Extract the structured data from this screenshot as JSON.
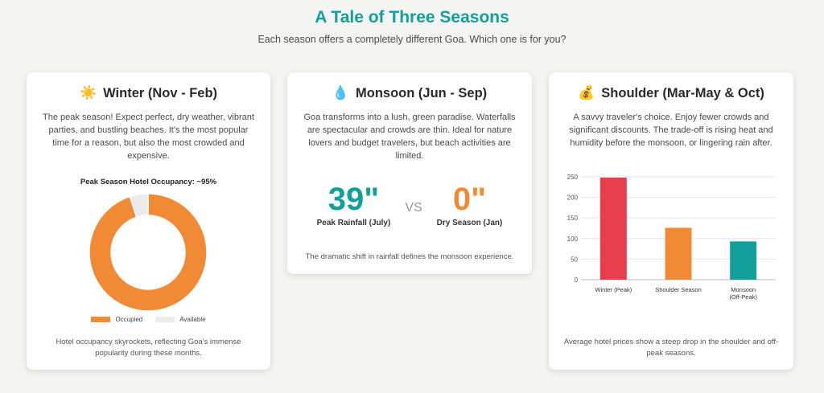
{
  "header": {
    "title": "A Tale of Three Seasons",
    "subtitle": "Each season offers a completely different Goa. Which one is for you?"
  },
  "winter": {
    "emoji": "☀️",
    "title": "Winter (Nov - Feb)",
    "description": "The peak season! Expect perfect, dry weather, vibrant parties, and bustling beaches. It's the most popular time for a reason, but also the most crowded and expensive.",
    "footer": "Hotel occupancy skyrockets, reflecting Goa's immense popularity during these months."
  },
  "monsoon": {
    "emoji": "💧",
    "title": "Monsoon (Jun - Sep)",
    "description": "Goa transforms into a lush, green paradise. Waterfalls are spectacular and crowds are thin. Ideal for nature lovers and budget travelers, but beach activities are limited.",
    "stat1_value": "39\"",
    "stat1_label": "Peak Rainfall (July)",
    "vs": "VS",
    "stat2_value": "0\"",
    "stat2_label": "Dry Season (Jan)",
    "footer": "The dramatic shift in rainfall defines the monsoon experience."
  },
  "shoulder": {
    "emoji": "💰",
    "title": "Shoulder (Mar-May & Oct)",
    "description": "A savvy traveler's choice. Enjoy fewer crowds and significant discounts. The trade-off is rising heat and humidity before the monsoon, or lingering rain after.",
    "footer": "Average hotel prices show a steep drop in the shoulder and off-peak seasons."
  },
  "colors": {
    "teal": "#14a09a",
    "orange": "#f08a35",
    "red": "#e63e4f",
    "grey": "#ebebeb"
  },
  "chart_data": [
    {
      "type": "pie",
      "title": "Peak Season Hotel Occupancy: ~95%",
      "categories": [
        "Occupied",
        "Available"
      ],
      "values": [
        95,
        5
      ],
      "colors": [
        "#f08a35",
        "#ebebeb"
      ],
      "donut": true,
      "legend": "bottom"
    },
    {
      "type": "bar",
      "title": "",
      "categories": [
        [
          "Winter (Peak)"
        ],
        [
          "Shoulder Season"
        ],
        [
          "Monsoon",
          "(Off-Peak)"
        ]
      ],
      "values": [
        248,
        126,
        93
      ],
      "colors": [
        "#e63e4f",
        "#f08a35",
        "#14a09a"
      ],
      "ylim": [
        0,
        250
      ],
      "yticks": [
        "0",
        "50",
        "100",
        "150",
        "200",
        "250"
      ],
      "grid": true
    }
  ]
}
